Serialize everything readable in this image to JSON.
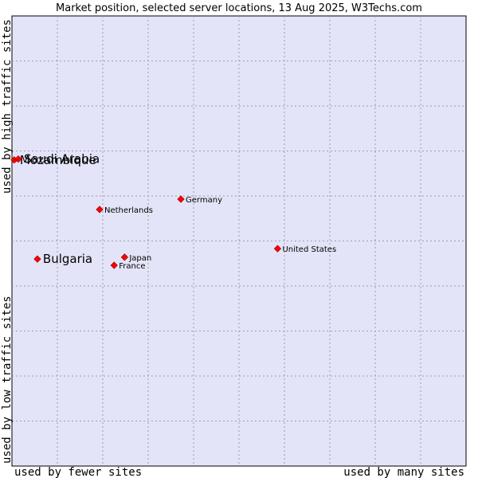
{
  "chart_data": {
    "type": "scatter",
    "title": "Market position, selected server locations, 13 Aug 2025, W3Techs.com",
    "xlabel_left": "used by fewer sites",
    "xlabel_right": "used by many sites",
    "ylabel_bottom": "used by low traffic sites",
    "ylabel_top": "used by high traffic sites",
    "xlim": [
      0,
      10
    ],
    "ylim": [
      0,
      10
    ],
    "grid": true,
    "marker_color": "#ff0000",
    "plot_background": "#e4e4f8",
    "points": [
      {
        "name": "Mozambique",
        "x": 0.05,
        "y": 6.8,
        "emphasis": true
      },
      {
        "name": "Saudi Arabia",
        "x": 0.14,
        "y": 6.82,
        "emphasis": true
      },
      {
        "name": "Bulgaria",
        "x": 0.56,
        "y": 4.6,
        "emphasis": true
      },
      {
        "name": "Netherlands",
        "x": 1.93,
        "y": 5.7,
        "emphasis": false
      },
      {
        "name": "Germany",
        "x": 3.72,
        "y": 5.93,
        "emphasis": false
      },
      {
        "name": "Japan",
        "x": 2.48,
        "y": 4.64,
        "emphasis": false
      },
      {
        "name": "France",
        "x": 2.25,
        "y": 4.46,
        "emphasis": false
      },
      {
        "name": "United States",
        "x": 5.85,
        "y": 4.83,
        "emphasis": false
      }
    ]
  }
}
